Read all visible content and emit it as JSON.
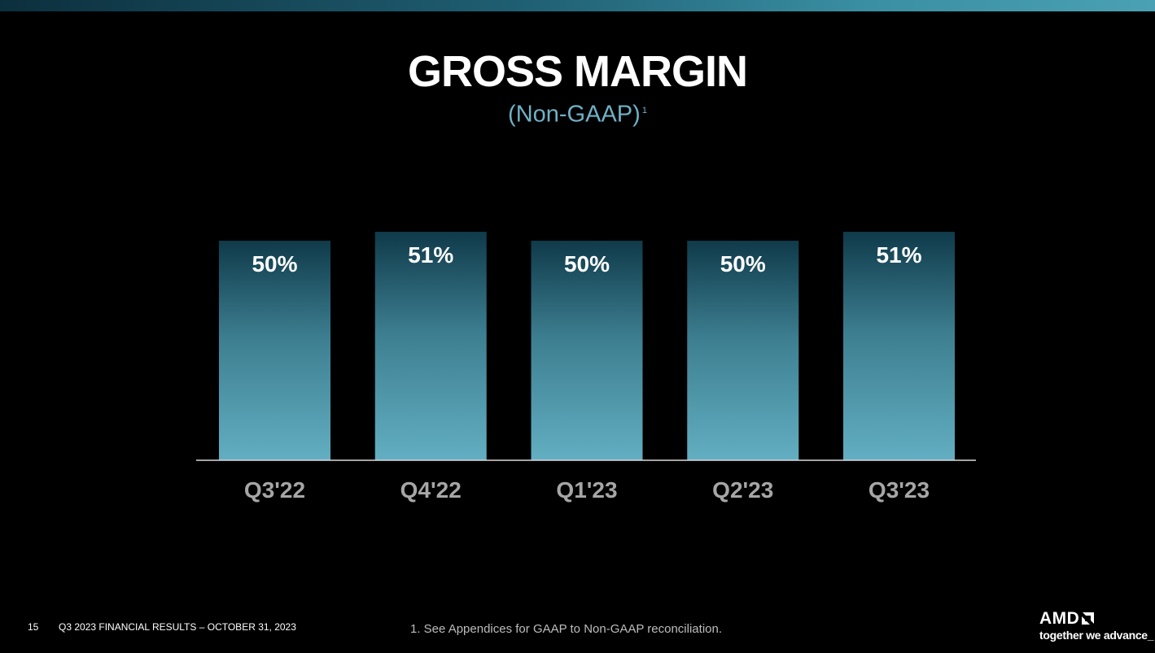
{
  "slide": {
    "title": "GROSS MARGIN",
    "subtitle": "(Non-GAAP)",
    "subtitle_footnote_mark": "1",
    "page_number": "15",
    "footer_text": "Q3 2023 FINANCIAL RESULTS – OCTOBER 31, 2023",
    "footnote": "1.  See Appendices for GAAP to Non-GAAP reconciliation.",
    "logo_text": "AMD",
    "tagline": "together we advance_"
  },
  "colors": {
    "background": "#000000",
    "bar_top": "#0f3a4a",
    "bar_bottom": "#63aec2",
    "category_label": "#a6a6a6",
    "value_label": "#ffffff",
    "axis_line": "#d9d9d9"
  },
  "chart_data": {
    "type": "bar",
    "categories": [
      "Q3'22",
      "Q4'22",
      "Q1'23",
      "Q2'23",
      "Q3'23"
    ],
    "values": [
      50,
      51,
      50,
      50,
      51
    ],
    "value_labels": [
      "50%",
      "51%",
      "50%",
      "50%",
      "51%"
    ],
    "title": "GROSS MARGIN",
    "xlabel": "",
    "ylabel": "",
    "grid": false,
    "legend": "none"
  }
}
